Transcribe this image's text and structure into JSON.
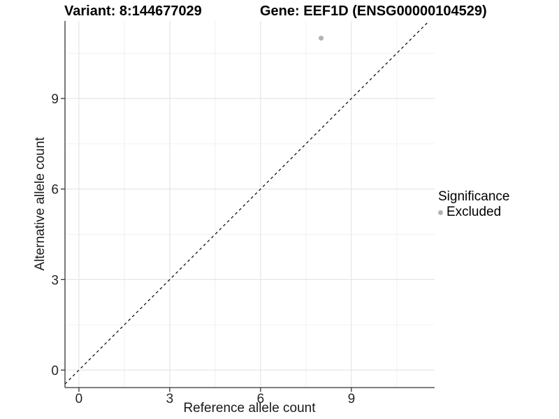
{
  "chart_data": {
    "type": "scatter",
    "title_left": "Variant: 8:144677029",
    "title_right": "Gene: EEF1D (ENSG00000104529)",
    "xlabel": "Reference allele count",
    "ylabel": "Alternative allele count",
    "x_ticks": [
      0,
      3,
      6,
      9
    ],
    "y_ticks": [
      0,
      3,
      6,
      9
    ],
    "x_minor_ticks": [
      1.5,
      4.5,
      7.5,
      10.5
    ],
    "y_minor_ticks": [
      1.5,
      4.5,
      7.5,
      10.5
    ],
    "xlim": [
      -0.46,
      11.75
    ],
    "ylim": [
      -0.58,
      11.57
    ],
    "grid": "major+minor",
    "legend_position": "right",
    "series": [
      {
        "name": "Excluded",
        "color": "#b3b3b3",
        "points": [
          {
            "x": 8,
            "y": 11
          }
        ]
      }
    ],
    "identity_line": {
      "slope": 1,
      "intercept": 0,
      "style": "dashed",
      "color": "#000000"
    },
    "legend": {
      "title": "Significance",
      "entries": [
        {
          "label": "Excluded",
          "color": "#b3b3b3"
        }
      ]
    },
    "colors": {
      "grid_major": "#e3e3e3",
      "grid_minor": "#f0f0f0",
      "axis_line": "#333333",
      "tick_text": "#262626"
    }
  }
}
